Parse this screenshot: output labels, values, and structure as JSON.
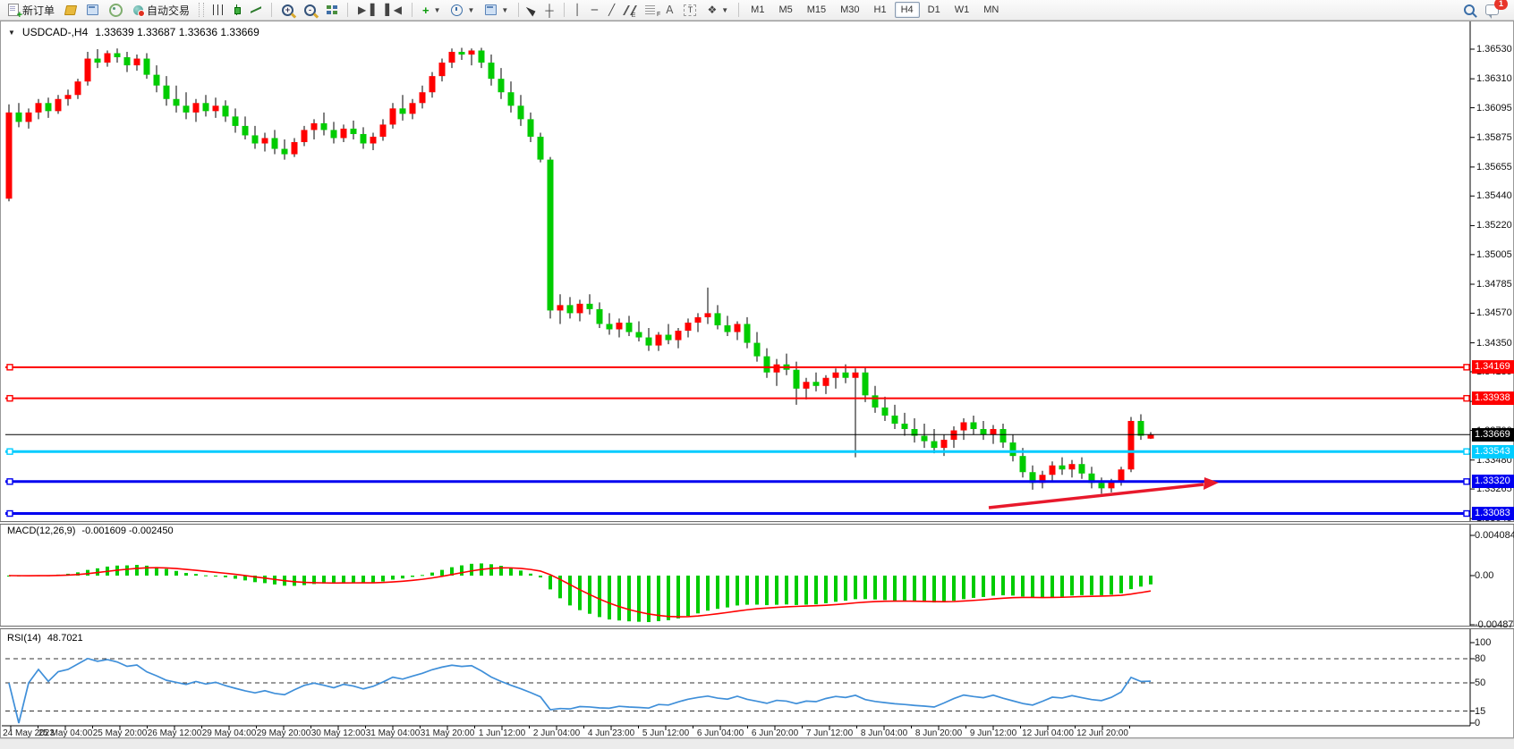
{
  "toolbar": {
    "new_order_label": "新订单",
    "autotrade_label": "自动交易",
    "timeframes": [
      "M1",
      "M5",
      "M15",
      "M30",
      "H1",
      "H4",
      "D1",
      "W1",
      "MN"
    ],
    "active_timeframe": "H4",
    "notification_count": "1"
  },
  "chart": {
    "title_symbol": "USDCAD-,H4",
    "title_ohlc": "1.33639 1.33687 1.33636 1.33669"
  },
  "price_axis": {
    "ticks": [
      "1.36530",
      "1.36310",
      "1.36095",
      "1.35875",
      "1.35655",
      "1.35440",
      "1.35220",
      "1.35005",
      "1.34785",
      "1.34570",
      "1.34350",
      "1.34135",
      "1.33915",
      "1.33700",
      "1.33480",
      "1.33265",
      "1.33045"
    ]
  },
  "lines": [
    {
      "label": "1.34169",
      "price": 1.34169,
      "color": "#fe0000",
      "width": 2,
      "handles": true,
      "name": "resistance-line-1"
    },
    {
      "label": "1.33938",
      "price": 1.33938,
      "color": "#fe0000",
      "width": 2,
      "handles": true,
      "name": "resistance-line-2"
    },
    {
      "label": "1.33669",
      "price": 1.33669,
      "color": "#000000",
      "width": 1,
      "handles": false,
      "name": "bid-price-line"
    },
    {
      "label": "1.33543",
      "price": 1.33543,
      "color": "#00ccff",
      "width": 3,
      "handles": true,
      "name": "support-line-cyan"
    },
    {
      "label": "1.33320",
      "price": 1.3332,
      "color": "#0000f0",
      "width": 3,
      "handles": true,
      "name": "support-line-blue-1"
    },
    {
      "label": "1.33083",
      "price": 1.33083,
      "color": "#0000f0",
      "width": 3,
      "handles": true,
      "name": "support-line-blue-2"
    }
  ],
  "arrow": {
    "color": "#e8192c"
  },
  "indicators": {
    "macd": {
      "label": "MACD(12,26,9)",
      "values": "-0.001609 -0.002450",
      "axis": [
        "0.004084",
        "0.00",
        "-0.004872"
      ],
      "histogram_color": "#00cc00",
      "signal_color": "#ff0000"
    },
    "rsi": {
      "label": "RSI(14)",
      "value": "48.7021",
      "axis": [
        "100",
        "80",
        "50",
        "15",
        "0"
      ],
      "levels": [
        80,
        50,
        15
      ],
      "line_color": "#3f8fd9"
    }
  },
  "chart_data": {
    "type": "candlestick",
    "symbol": "USDCAD",
    "timeframe": "H4",
    "up_color": "#ff0000",
    "down_color": "#00cc00",
    "note": "red = bullish, green = bearish (Chinese color convention)",
    "y_axis_range": [
      1.33045,
      1.3653
    ],
    "current_bid": "1.33669",
    "x_tick_labels": [
      "24 May 2023",
      "25 May 04:00",
      "25 May 20:00",
      "26 May 12:00",
      "29 May 04:00",
      "29 May 20:00",
      "30 May 12:00",
      "31 May 04:00",
      "31 May 20:00",
      "1 Jun 12:00",
      "2 Jun 04:00",
      "4 Jun 23:00",
      "5 Jun 12:00",
      "6 Jun 04:00",
      "6 Jun 20:00",
      "7 Jun 12:00",
      "8 Jun 04:00",
      "8 Jun 20:00",
      "9 Jun 12:00",
      "12 Jun 04:00",
      "12 Jun 20:00"
    ],
    "ohlc": [
      [
        1.3542,
        1.3612,
        1.354,
        1.3606
      ],
      [
        1.3606,
        1.3613,
        1.3595,
        1.3599
      ],
      [
        1.3599,
        1.3609,
        1.3594,
        1.3606
      ],
      [
        1.3606,
        1.3616,
        1.3601,
        1.3613
      ],
      [
        1.3613,
        1.3617,
        1.3602,
        1.3607
      ],
      [
        1.3607,
        1.3619,
        1.3605,
        1.3616
      ],
      [
        1.3616,
        1.3623,
        1.3611,
        1.3619
      ],
      [
        1.3619,
        1.3631,
        1.3616,
        1.3629
      ],
      [
        1.3629,
        1.3651,
        1.3626,
        1.3646
      ],
      [
        1.3646,
        1.3653,
        1.3639,
        1.3643
      ],
      [
        1.3643,
        1.3652,
        1.364,
        1.365
      ],
      [
        1.365,
        1.36535,
        1.3643,
        1.3647
      ],
      [
        1.3647,
        1.3651,
        1.3636,
        1.3641
      ],
      [
        1.3641,
        1.3649,
        1.3637,
        1.3646
      ],
      [
        1.3646,
        1.365,
        1.3631,
        1.3634
      ],
      [
        1.3634,
        1.3641,
        1.3621,
        1.3626
      ],
      [
        1.3626,
        1.3633,
        1.3611,
        1.3616
      ],
      [
        1.3616,
        1.3626,
        1.3606,
        1.3611
      ],
      [
        1.3611,
        1.3621,
        1.3601,
        1.3606
      ],
      [
        1.3606,
        1.3616,
        1.3599,
        1.3613
      ],
      [
        1.3613,
        1.3619,
        1.3603,
        1.3607
      ],
      [
        1.3607,
        1.3617,
        1.3602,
        1.3611
      ],
      [
        1.3611,
        1.3615,
        1.3599,
        1.3603
      ],
      [
        1.3603,
        1.3609,
        1.3591,
        1.3596
      ],
      [
        1.3596,
        1.3603,
        1.3586,
        1.3589
      ],
      [
        1.3589,
        1.3596,
        1.3579,
        1.3583
      ],
      [
        1.3583,
        1.3591,
        1.3577,
        1.3587
      ],
      [
        1.3587,
        1.3593,
        1.3575,
        1.3579
      ],
      [
        1.3579,
        1.3586,
        1.3571,
        1.3575
      ],
      [
        1.3575,
        1.3587,
        1.3573,
        1.3584
      ],
      [
        1.3584,
        1.3596,
        1.3581,
        1.3593
      ],
      [
        1.3593,
        1.3601,
        1.3586,
        1.3598
      ],
      [
        1.3598,
        1.3606,
        1.3589,
        1.3593
      ],
      [
        1.3593,
        1.3599,
        1.3583,
        1.3587
      ],
      [
        1.3587,
        1.3597,
        1.3584,
        1.3594
      ],
      [
        1.3594,
        1.36,
        1.3586,
        1.359
      ],
      [
        1.359,
        1.3595,
        1.3579,
        1.3583
      ],
      [
        1.3583,
        1.3591,
        1.3578,
        1.3588
      ],
      [
        1.3588,
        1.3601,
        1.3585,
        1.3597
      ],
      [
        1.3597,
        1.3613,
        1.3594,
        1.3609
      ],
      [
        1.3609,
        1.3619,
        1.36,
        1.3605
      ],
      [
        1.3605,
        1.3616,
        1.3601,
        1.3613
      ],
      [
        1.3613,
        1.3626,
        1.3609,
        1.3621
      ],
      [
        1.3621,
        1.3636,
        1.3617,
        1.3633
      ],
      [
        1.3633,
        1.3646,
        1.3629,
        1.3643
      ],
      [
        1.3643,
        1.36535,
        1.3639,
        1.3651
      ],
      [
        1.3651,
        1.3654,
        1.3645,
        1.3649
      ],
      [
        1.3649,
        1.36535,
        1.3641,
        1.3652
      ],
      [
        1.3652,
        1.3654,
        1.3639,
        1.3643
      ],
      [
        1.3643,
        1.3649,
        1.3626,
        1.3631
      ],
      [
        1.3631,
        1.3639,
        1.3616,
        1.3621
      ],
      [
        1.3621,
        1.3629,
        1.3606,
        1.3611
      ],
      [
        1.3611,
        1.3619,
        1.3596,
        1.3601
      ],
      [
        1.3601,
        1.3606,
        1.3584,
        1.3588
      ],
      [
        1.3588,
        1.3591,
        1.3569,
        1.3571
      ],
      [
        1.3571,
        1.3573,
        1.3453,
        1.3459
      ],
      [
        1.3459,
        1.3471,
        1.3449,
        1.3463
      ],
      [
        1.3463,
        1.3469,
        1.3453,
        1.3457
      ],
      [
        1.3457,
        1.3467,
        1.3451,
        1.3464
      ],
      [
        1.3464,
        1.3471,
        1.3456,
        1.346
      ],
      [
        1.346,
        1.3465,
        1.3446,
        1.3449
      ],
      [
        1.3449,
        1.3457,
        1.3441,
        1.3445
      ],
      [
        1.3445,
        1.3453,
        1.3439,
        1.345
      ],
      [
        1.345,
        1.3455,
        1.344,
        1.3443
      ],
      [
        1.3443,
        1.3451,
        1.3436,
        1.3439
      ],
      [
        1.3439,
        1.3446,
        1.3429,
        1.3433
      ],
      [
        1.3433,
        1.3443,
        1.3429,
        1.3441
      ],
      [
        1.3441,
        1.3449,
        1.3434,
        1.3437
      ],
      [
        1.3437,
        1.3446,
        1.3431,
        1.3444
      ],
      [
        1.3444,
        1.3453,
        1.3439,
        1.345
      ],
      [
        1.345,
        1.3457,
        1.3443,
        1.3454
      ],
      [
        1.3454,
        1.3476,
        1.3449,
        1.3457
      ],
      [
        1.3457,
        1.3463,
        1.3445,
        1.3448
      ],
      [
        1.3448,
        1.3455,
        1.344,
        1.3443
      ],
      [
        1.3443,
        1.3451,
        1.3437,
        1.3449
      ],
      [
        1.3449,
        1.3454,
        1.3431,
        1.3435
      ],
      [
        1.3435,
        1.3443,
        1.3421,
        1.3425
      ],
      [
        1.3425,
        1.3431,
        1.3409,
        1.3413
      ],
      [
        1.3413,
        1.3423,
        1.3403,
        1.3419
      ],
      [
        1.3419,
        1.3427,
        1.3411,
        1.3415
      ],
      [
        1.3415,
        1.3421,
        1.3389,
        1.3401
      ],
      [
        1.3401,
        1.3409,
        1.3393,
        1.3406
      ],
      [
        1.3406,
        1.3413,
        1.3399,
        1.3403
      ],
      [
        1.3403,
        1.3411,
        1.3397,
        1.3409
      ],
      [
        1.3409,
        1.3416,
        1.3401,
        1.3413
      ],
      [
        1.3413,
        1.3419,
        1.3405,
        1.3409
      ],
      [
        1.3409,
        1.3416,
        1.335,
        1.3413
      ],
      [
        1.3413,
        1.3417,
        1.3391,
        1.3396
      ],
      [
        1.3396,
        1.3403,
        1.3383,
        1.3387
      ],
      [
        1.3387,
        1.3395,
        1.3377,
        1.3381
      ],
      [
        1.3381,
        1.3389,
        1.3371,
        1.3375
      ],
      [
        1.3375,
        1.3383,
        1.3366,
        1.3371
      ],
      [
        1.3371,
        1.3379,
        1.3361,
        1.3366
      ],
      [
        1.3366,
        1.3375,
        1.3357,
        1.3362
      ],
      [
        1.3362,
        1.3371,
        1.3353,
        1.3357
      ],
      [
        1.3357,
        1.3367,
        1.3351,
        1.3363
      ],
      [
        1.3363,
        1.3373,
        1.3357,
        1.337
      ],
      [
        1.337,
        1.3379,
        1.3363,
        1.3376
      ],
      [
        1.3376,
        1.3381,
        1.3367,
        1.3371
      ],
      [
        1.3371,
        1.3377,
        1.3363,
        1.3367
      ],
      [
        1.3367,
        1.3374,
        1.336,
        1.3371
      ],
      [
        1.3371,
        1.3375,
        1.3357,
        1.3361
      ],
      [
        1.3361,
        1.3367,
        1.3347,
        1.3351
      ],
      [
        1.3351,
        1.3357,
        1.3335,
        1.3339
      ],
      [
        1.3339,
        1.3344,
        1.3326,
        1.3331
      ],
      [
        1.3331,
        1.334,
        1.3327,
        1.3337
      ],
      [
        1.3337,
        1.3347,
        1.3332,
        1.3344
      ],
      [
        1.3344,
        1.335,
        1.3337,
        1.3341
      ],
      [
        1.3341,
        1.3348,
        1.3335,
        1.3345
      ],
      [
        1.3345,
        1.335,
        1.3334,
        1.3338
      ],
      [
        1.3338,
        1.3343,
        1.3327,
        1.3331
      ],
      [
        1.3331,
        1.3335,
        1.3323,
        1.3327
      ],
      [
        1.3327,
        1.3334,
        1.3324,
        1.3332
      ],
      [
        1.3332,
        1.3343,
        1.3329,
        1.3341
      ],
      [
        1.3341,
        1.338,
        1.3339,
        1.3377
      ],
      [
        1.3377,
        1.3382,
        1.3363,
        1.3366
      ],
      [
        1.33639,
        1.33687,
        1.33636,
        1.33669
      ]
    ]
  }
}
